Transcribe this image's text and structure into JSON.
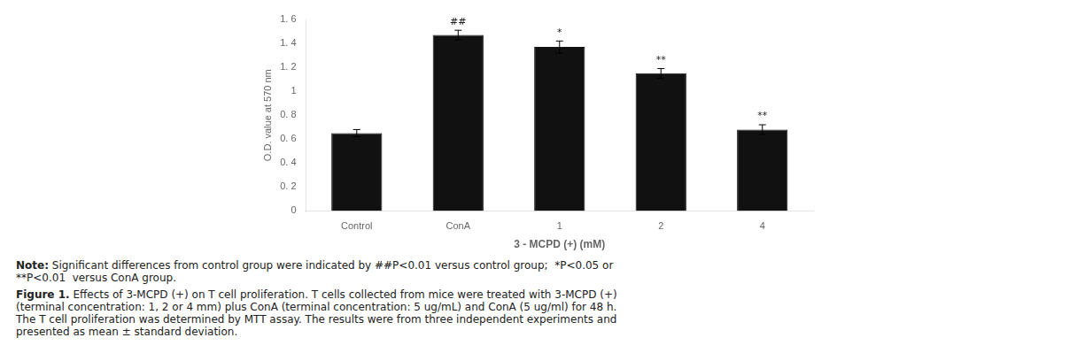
{
  "chart_data": {
    "type": "bar",
    "categories": [
      "Control",
      "ConA",
      "1",
      "2",
      "4"
    ],
    "values": [
      0.65,
      1.47,
      1.37,
      1.15,
      0.68
    ],
    "errors": [
      0.03,
      0.04,
      0.05,
      0.04,
      0.04
    ],
    "color": "#111111",
    "ylim": [
      0,
      1.6
    ],
    "yticks": [
      0,
      {
        "value": 0.2,
        "label": "0. 2"
      },
      {
        "value": 0.4,
        "label": "0. 4"
      },
      {
        "value": 0.6,
        "label": "0. 6"
      },
      {
        "value": 0.8,
        "label": "0. 8"
      },
      1,
      {
        "value": 1.2,
        "label": "1. 2"
      },
      {
        "value": 1.4,
        "label": "1. 4"
      },
      {
        "value": 1.6,
        "label": "1. 6"
      }
    ],
    "ylabel": "O.D. value at 570 nm",
    "xlabel": "3 - MCPD (+) (mM)",
    "annotations": [
      null,
      "##",
      "*",
      "**",
      "**"
    ],
    "grid": false,
    "note_label": "Note:",
    "note": " Significant differences from control group were indicated by ##P<0.01 versus control group;  *P<0.05 or\n**P<0.01  versus ConA group.",
    "caption_label": "Figure 1.",
    "caption": " Effects of 3-MCPD (+) on T cell proliferation. T cells collected from mice were treated with 3-MCPD (+)\n(terminal concentration: 1, 2 or 4 mm) plus ConA (terminal concentration: 5 ug/mL) and ConA (5 ug/ml) for 48 h.\nThe T cell proliferation was determined by MTT assay. The results were from three independent experiments and\npresented as mean ± standard deviation."
  }
}
